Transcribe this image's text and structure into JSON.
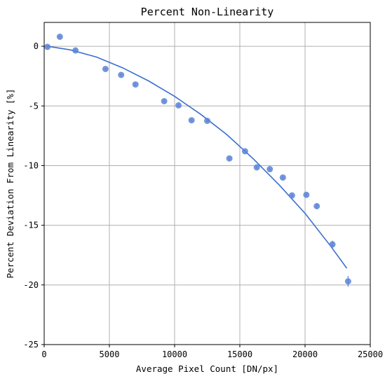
{
  "chart_data": {
    "type": "scatter",
    "title": "Percent Non-Linearity",
    "xlabel": "Average Pixel Count [DN/px]",
    "ylabel": "Percent Deviation From Linearity [%]",
    "xlim": [
      0,
      25000
    ],
    "ylim": [
      -25,
      2
    ],
    "xticks": [
      0,
      5000,
      10000,
      15000,
      20000,
      25000
    ],
    "yticks": [
      0,
      -5,
      -10,
      -15,
      -20,
      -25
    ],
    "grid": true,
    "colors": {
      "points": "#5b82d6",
      "fit": "#3a6fcf",
      "grid": "#b0b0b0"
    },
    "series": [
      {
        "type": "scatter",
        "x": [
          250,
          1200,
          2400,
          4700,
          5900,
          7000,
          9200,
          10300,
          11300,
          12500,
          14200,
          15400,
          16300,
          17300,
          18300,
          19000,
          20100,
          20900,
          22100,
          23300
        ],
        "y": [
          -0.05,
          0.8,
          -0.35,
          -1.9,
          -2.4,
          -3.2,
          -4.6,
          -4.95,
          -6.2,
          -6.25,
          -9.4,
          -8.8,
          -10.15,
          -10.3,
          -11.0,
          -12.5,
          -12.45,
          -13.4,
          -16.6,
          -19.7
        ],
        "yerr": [
          0.1,
          0.1,
          0.1,
          0.1,
          0.1,
          0.1,
          0.1,
          0.1,
          0.1,
          0.1,
          0.1,
          0.1,
          0.1,
          0.1,
          0.1,
          0.15,
          0.15,
          0.2,
          0.3,
          0.45
        ]
      },
      {
        "type": "line",
        "x": [
          250,
          2000,
          4000,
          6000,
          8000,
          10000,
          12000,
          14000,
          16000,
          18000,
          20000,
          22000,
          23200
        ],
        "y": [
          0.0,
          -0.3,
          -0.9,
          -1.8,
          -2.9,
          -4.2,
          -5.7,
          -7.4,
          -9.4,
          -11.6,
          -14.0,
          -16.8,
          -18.6
        ]
      }
    ]
  }
}
